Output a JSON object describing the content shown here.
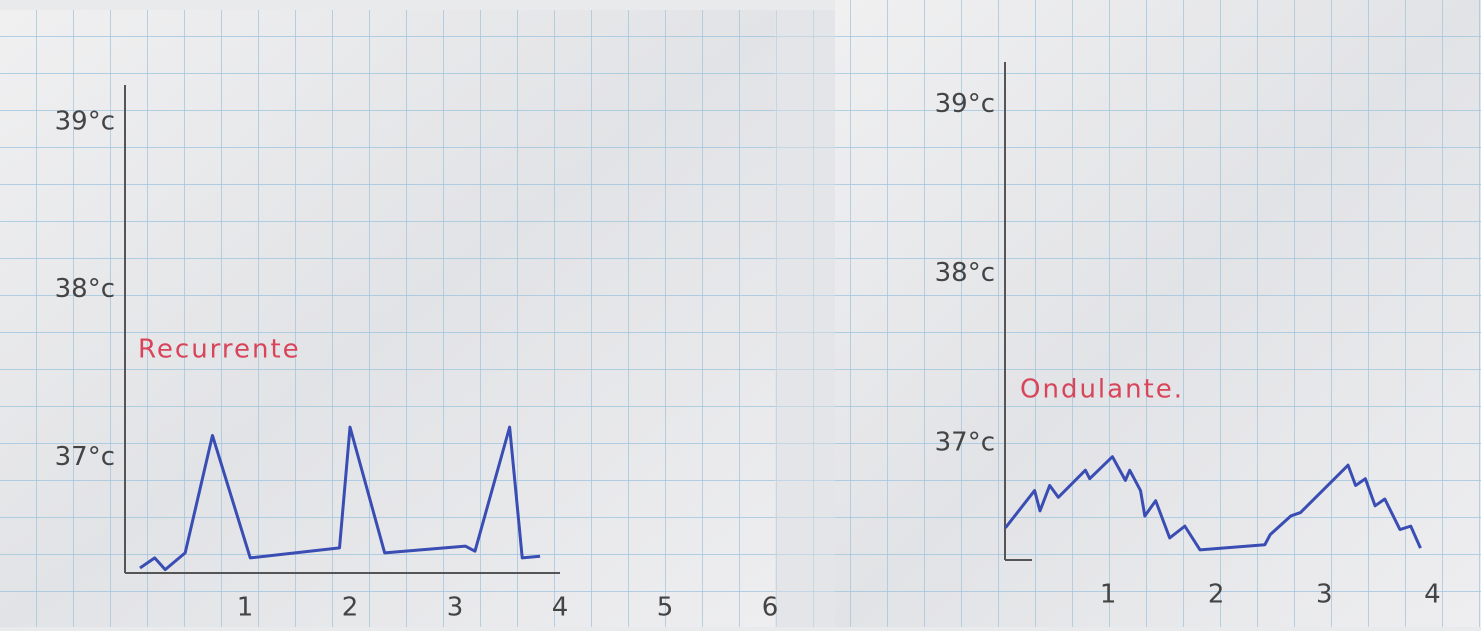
{
  "chart_data": [
    {
      "type": "line",
      "annotation": "Recurrente",
      "x": [
        0,
        0.14,
        0.24,
        0.43,
        0.69,
        1.05,
        1.9,
        2.0,
        2.33,
        3.1,
        3.19,
        3.52,
        3.64,
        3.81
      ],
      "series": [
        {
          "color": "#3a4db3",
          "values": [
            36.34,
            36.4,
            36.33,
            36.43,
            37.13,
            36.4,
            36.46,
            37.18,
            36.43,
            36.47,
            36.44,
            37.18,
            36.4,
            36.41
          ]
        }
      ],
      "xlim": [
        0,
        6.19
      ],
      "xticks": [
        1,
        2,
        3,
        4,
        5,
        6
      ],
      "ylim": [
        36.31,
        39.22
      ],
      "yticks": [
        {
          "value": 37,
          "label": "37°c"
        },
        {
          "value": 38,
          "label": "38°c"
        },
        {
          "value": 39,
          "label": "39°c"
        }
      ]
    },
    {
      "type": "line",
      "annotation": "Ondulante.",
      "x": [
        0.05,
        0.32,
        0.37,
        0.46,
        0.54,
        0.79,
        0.83,
        1.04,
        1.16,
        1.2,
        1.3,
        1.34,
        1.44,
        1.57,
        1.71,
        1.85,
        2.45,
        2.5,
        2.69,
        2.78,
        3.22,
        3.29,
        3.38,
        3.47,
        3.56,
        3.7,
        3.8,
        3.89
      ],
      "series": [
        {
          "color": "#3a4db3",
          "values": [
            36.5,
            36.72,
            36.6,
            36.75,
            36.68,
            36.84,
            36.79,
            36.92,
            36.78,
            36.84,
            36.72,
            36.57,
            36.66,
            36.44,
            36.51,
            36.37,
            36.4,
            36.46,
            36.57,
            36.59,
            36.87,
            36.75,
            36.79,
            36.63,
            36.67,
            36.49,
            36.51,
            36.38
          ]
        }
      ],
      "xlim": [
        0,
        4.45
      ],
      "xticks": [
        1,
        2,
        3,
        4
      ],
      "ylim": [
        36.31,
        39.25
      ],
      "yticks": [
        {
          "value": 37,
          "label": "37°c"
        },
        {
          "value": 38,
          "label": "38°c"
        },
        {
          "value": 39,
          "label": "39°c"
        }
      ]
    }
  ]
}
